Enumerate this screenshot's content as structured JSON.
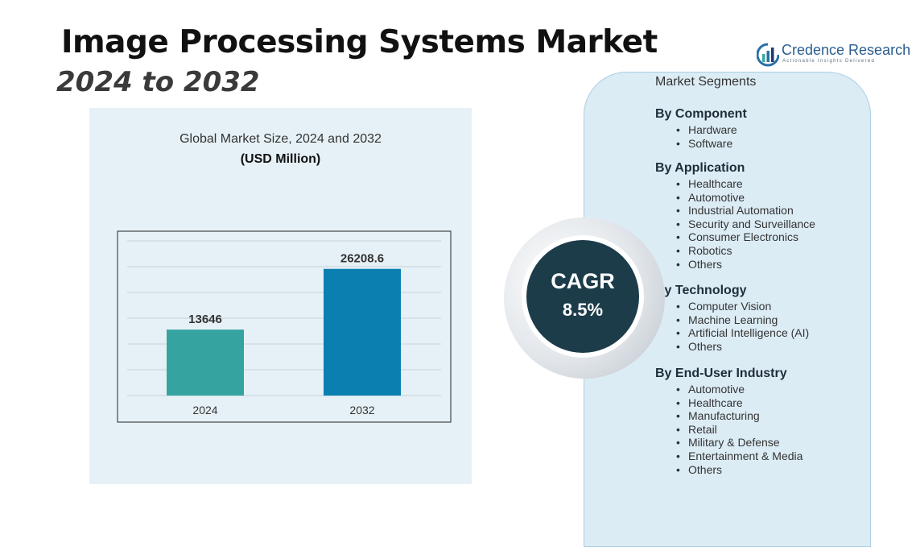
{
  "header": {
    "title": "Image Processing Systems Market",
    "subtitle": "2024 to 2032"
  },
  "logo": {
    "name": "Credence Research",
    "tagline": "Actionable Insights Delivered",
    "icon": "credence-logo-icon"
  },
  "chart_data": {
    "type": "bar",
    "title": "Global Market Size, 2024 and 2032",
    "unit_label": "(USD Million)",
    "categories": [
      "2024",
      "2032"
    ],
    "values": [
      13646,
      26208.6
    ],
    "value_labels": [
      "13646",
      "26208.6"
    ],
    "ylim": [
      0,
      32000
    ],
    "grid": true,
    "y_tick_labels_shown": false,
    "bar_colors": [
      "#35a4a0",
      "#0a7fb0"
    ]
  },
  "cagr": {
    "label": "CAGR",
    "value": "8.5%"
  },
  "segments": {
    "heading": "Market Segments",
    "groups": [
      {
        "title": "By Component",
        "items": [
          "Hardware",
          "Software"
        ]
      },
      {
        "title": "By Application",
        "items": [
          "Healthcare",
          "Automotive",
          "Industrial Automation",
          "Security and Surveillance",
          "Consumer Electronics",
          "Robotics",
          "Others"
        ]
      },
      {
        "title": "By Technology",
        "items": [
          "Computer Vision",
          "Machine Learning",
          "Artificial Intelligence (AI)",
          "Others"
        ]
      },
      {
        "title": "By End-User Industry",
        "items": [
          "Automotive",
          "Healthcare",
          "Manufacturing",
          "Retail",
          "Military & Defense",
          "Entertainment & Media",
          "Others"
        ]
      }
    ]
  },
  "colors": {
    "panel_bg": "#e6f1f7",
    "segment_panel_bg": "#dcecf5",
    "cagr_circle": "#1d3c4a",
    "logo_blue": "#2a5d8f"
  }
}
